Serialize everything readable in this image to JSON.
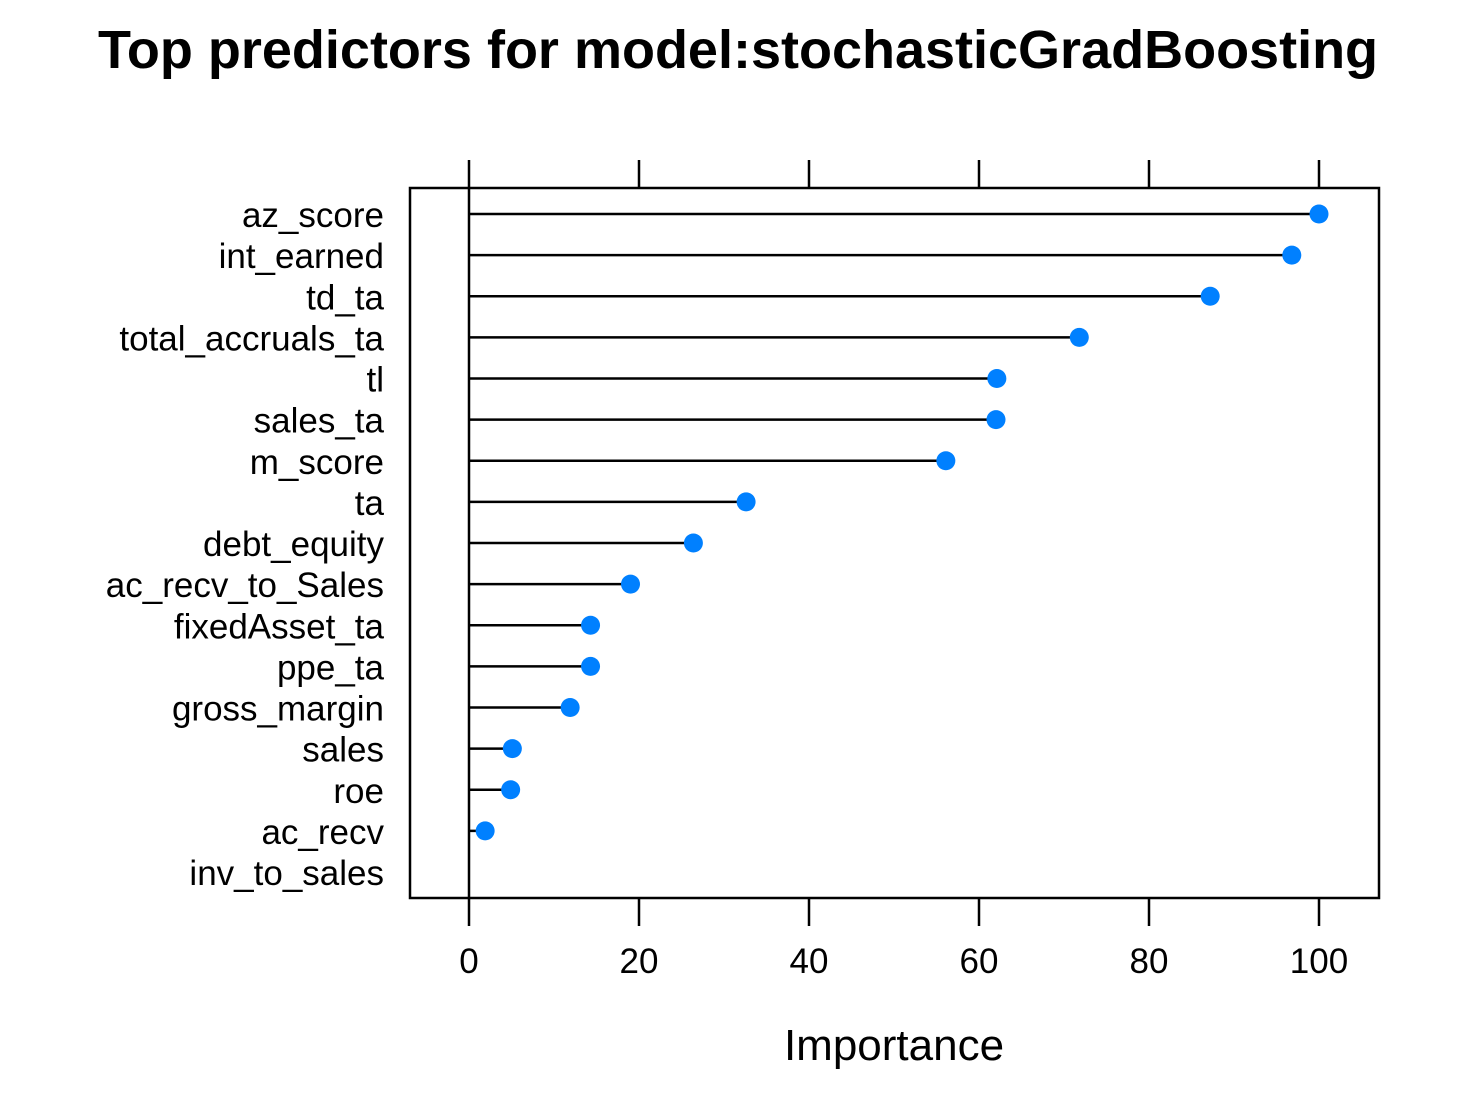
{
  "colors": {
    "point": "#0080ff",
    "line": "#000000",
    "frame": "#000000",
    "text": "#000000"
  },
  "chart_data": {
    "type": "dot",
    "title": "Top predictors for model:stochasticGradBoosting",
    "xlabel": "Importance",
    "ylabel": "",
    "xlim": [
      -7,
      107
    ],
    "xticks": [
      0,
      20,
      40,
      60,
      80,
      100
    ],
    "top_ticks": [
      0,
      20,
      40,
      60,
      80,
      100
    ],
    "grid": false,
    "legend": "none",
    "categories": [
      "az_score",
      "int_earned",
      "td_ta",
      "total_accruals_ta",
      "tl",
      "sales_ta",
      "m_score",
      "ta",
      "debt_equity",
      "ac_recv_to_Sales",
      "fixedAsset_ta",
      "ppe_ta",
      "gross_margin",
      "sales",
      "roe",
      "ac_recv",
      "inv_to_sales"
    ],
    "values": [
      100,
      96.8,
      87.2,
      71.8,
      62.1,
      62.0,
      56.1,
      32.6,
      26.4,
      19.0,
      14.3,
      14.3,
      11.9,
      5.1,
      4.9,
      1.9,
      0
    ]
  }
}
